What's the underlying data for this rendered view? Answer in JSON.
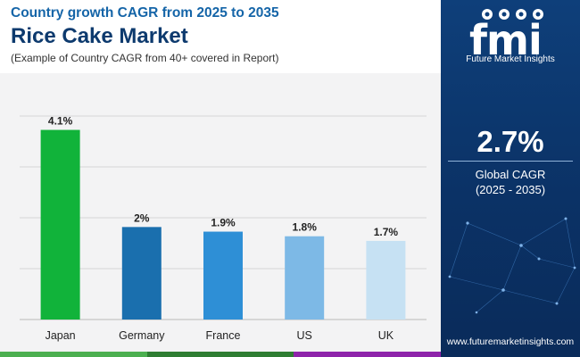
{
  "header": {
    "subtitle": "Country growth CAGR from 2025 to 2035",
    "title": "Rice Cake Market",
    "note": "(Example of Country CAGR from 40+ covered in Report)"
  },
  "colors": {
    "title": "#0d3a6e",
    "subtitle": "#1565a8",
    "panel": "#0b3266",
    "strip": [
      "#4caf50",
      "#2e7d32",
      "#8e24aa",
      "#1e88e5"
    ]
  },
  "chart_data": {
    "type": "bar",
    "categories": [
      "Japan",
      "Germany",
      "France",
      "US",
      "UK"
    ],
    "values": [
      4.1,
      2.0,
      1.9,
      1.8,
      1.7
    ],
    "value_labels": [
      "4.1%",
      "2%",
      "1.9%",
      "1.8%",
      "1.7%"
    ],
    "bar_colors": [
      "#11b33a",
      "#1a6fae",
      "#2e8fd6",
      "#7db9e6",
      "#c6e1f3"
    ],
    "title": "",
    "xlabel": "",
    "ylabel": "",
    "ylim": [
      0,
      4.4
    ],
    "gridlines": [
      0,
      1.1,
      2.2,
      3.3,
      4.4
    ],
    "grid": true
  },
  "side": {
    "logo_text": "fmi",
    "logo_caption": "Future Market Insights",
    "value": "2.7%",
    "label": "Global CAGR",
    "range": "(2025 - 2035)",
    "website": "www.futuremarketinsights.com"
  }
}
